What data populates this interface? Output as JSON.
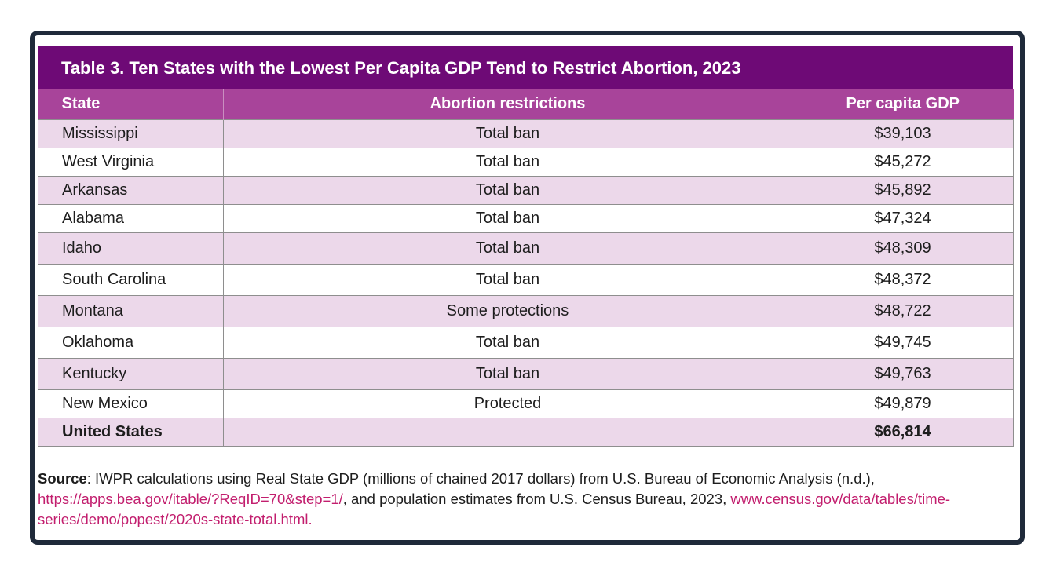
{
  "table": {
    "title": "Table 3. Ten States with the Lowest Per Capita GDP Tend to Restrict Abortion, 2023",
    "headers": [
      "State",
      "Abortion restrictions",
      "Per capita GDP"
    ],
    "rows": [
      {
        "state": "Mississippi",
        "restriction": "Total ban",
        "gdp": "$39,103"
      },
      {
        "state": "West Virginia",
        "restriction": "Total ban",
        "gdp": "$45,272"
      },
      {
        "state": "Arkansas",
        "restriction": "Total ban",
        "gdp": "$45,892"
      },
      {
        "state": "Alabama",
        "restriction": "Total ban",
        "gdp": "$47,324"
      },
      {
        "state": "Idaho",
        "restriction": "Total ban",
        "gdp": "$48,309"
      },
      {
        "state": "South Carolina",
        "restriction": "Total ban",
        "gdp": "$48,372"
      },
      {
        "state": "Montana",
        "restriction": "Some protections",
        "gdp": "$48,722"
      },
      {
        "state": "Oklahoma",
        "restriction": "Total ban",
        "gdp": "$49,745"
      },
      {
        "state": "Kentucky",
        "restriction": "Total ban",
        "gdp": "$49,763"
      },
      {
        "state": "New Mexico",
        "restriction": "Protected",
        "gdp": "$49,879"
      },
      {
        "state": "United States",
        "restriction": "",
        "gdp": "$66,814"
      }
    ]
  },
  "source": {
    "label": "Source",
    "text1": ":  IWPR calculations using Real State GDP (millions of chained 2017 dollars) from U.S. Bureau of Economic Analysis (n.d.), ",
    "link1": "https://apps.bea.gov/itable/?ReqID=70&step=1/",
    "text2": ", and population estimates from U.S. Census Bureau, 2023, ",
    "link2": "www.census.gov/data/tables/time-series/demo/popest/2020s-state-total.html."
  },
  "colors": {
    "title_bg": "#6e0a76",
    "header_bg": "#a8449a",
    "row_stripe": "#ecd8ea",
    "link": "#c21e6e",
    "frame_border": "#1f2a3a"
  }
}
